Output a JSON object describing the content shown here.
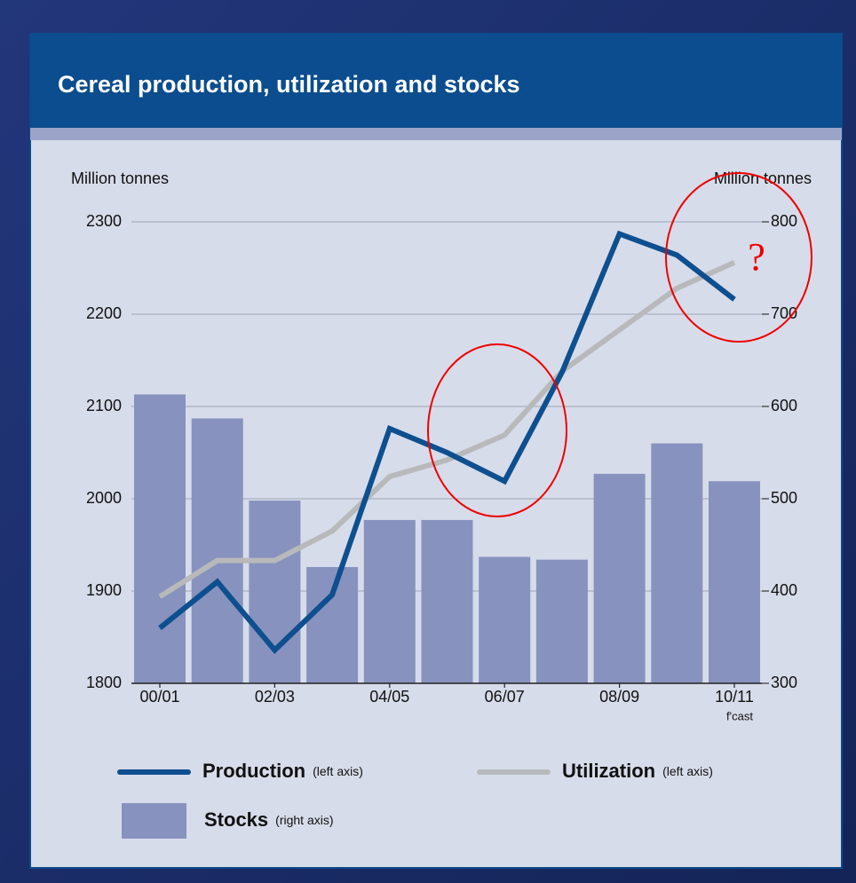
{
  "chart_data": {
    "type": "combo",
    "title": "Cereal production, utilization and stocks",
    "y_label": "Million tonnes",
    "y2_label": "Million tonnes",
    "categories": [
      "00/01",
      null,
      "02/03",
      null,
      "04/05",
      null,
      "06/07",
      null,
      "08/09",
      null,
      "10/11"
    ],
    "category_note": "f'cast",
    "ylim": [
      1800,
      2300
    ],
    "yticks": [
      1800,
      1900,
      2000,
      2100,
      2200,
      2300
    ],
    "y2lim": [
      300,
      800
    ],
    "y2ticks": [
      300,
      400,
      500,
      600,
      700,
      800
    ],
    "grid": true,
    "series": [
      {
        "name": "Stocks",
        "legend_note": "(right axis)",
        "type": "bar",
        "axis": "y2",
        "color": "#8792bf",
        "values": [
          613,
          587,
          498,
          426,
          477,
          477,
          437,
          434,
          527,
          560,
          519
        ]
      },
      {
        "name": "Utilization",
        "legend_note": "(left axis)",
        "type": "line",
        "color": "#b8b9bb",
        "values": [
          1894,
          1933,
          1933,
          1965,
          2024,
          2042,
          2069,
          2138,
          2183,
          2228,
          2256
        ]
      },
      {
        "name": "Production",
        "legend_note": "(left axis)",
        "type": "line",
        "color": "#0d4f8f",
        "values": [
          1860,
          1910,
          1836,
          1896,
          2076,
          2050,
          2019,
          2137,
          2287,
          2264,
          2216
        ]
      }
    ],
    "annotation": "?"
  }
}
